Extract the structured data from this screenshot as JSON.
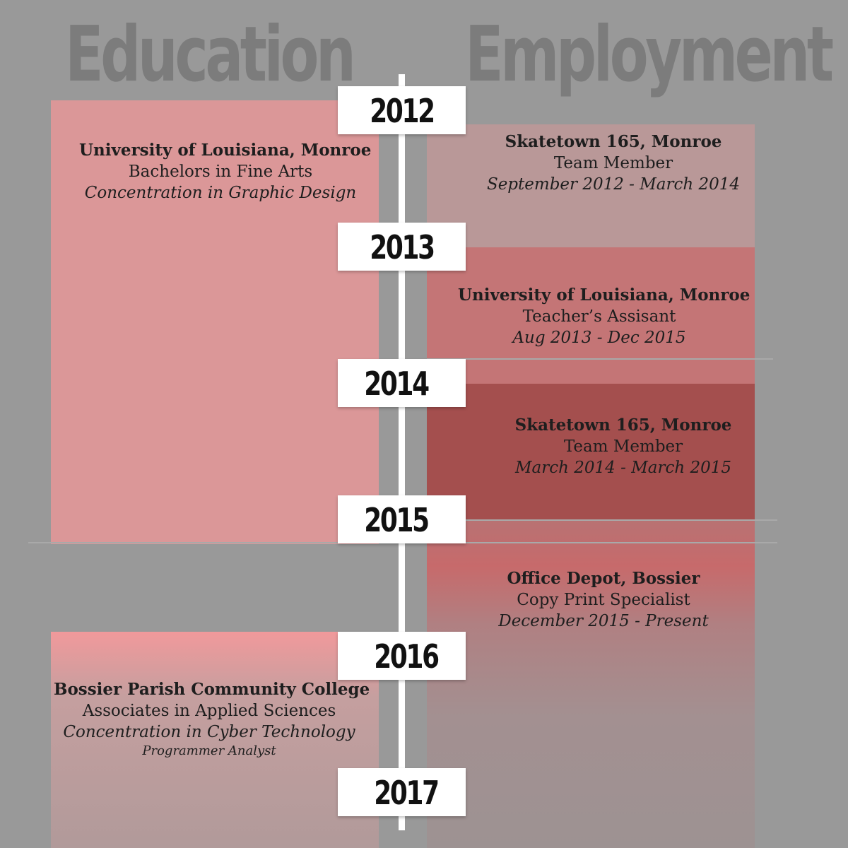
{
  "headings": {
    "education": "Education",
    "employment": "Employment"
  },
  "years": [
    "2012",
    "2013",
    "2014",
    "2015",
    "2016",
    "2017"
  ],
  "education": [
    {
      "name": "University of Louisiana, Monroe",
      "degree": "Bachelors in Fine Arts",
      "concentration": "Concentration in Graphic Design"
    },
    {
      "name": "Bossier Parish Community College",
      "degree": "Associates in Applied Sciences",
      "concentration": "Concentration in Cyber Technology",
      "extra": "Programmer Analyst"
    }
  ],
  "employment": [
    {
      "name": "Skatetown 165, Monroe",
      "role": "Team Member",
      "dates": "September 2012 - March 2014"
    },
    {
      "name": "University of Louisiana, Monroe",
      "role": "Teacher’s Assisant",
      "dates": "Aug 2013 - Dec 2015"
    },
    {
      "name": "Skatetown 165, Monroe",
      "role": "Team Member",
      "dates": "March 2014 - March 2015"
    },
    {
      "name": "Office Depot, Bossier",
      "role": "Copy Print Specialist",
      "dates": "December 2015 - Present"
    }
  ],
  "colors": {
    "background": "#999999",
    "heading": "#7c7c7c",
    "education_block": "#db9798",
    "employment_block_1": "#b99898",
    "employment_block_2": "#c47576",
    "employment_block_3": "#a44f4e",
    "employment_block_4": "#c76a6b",
    "timeline": "#ffffff"
  }
}
